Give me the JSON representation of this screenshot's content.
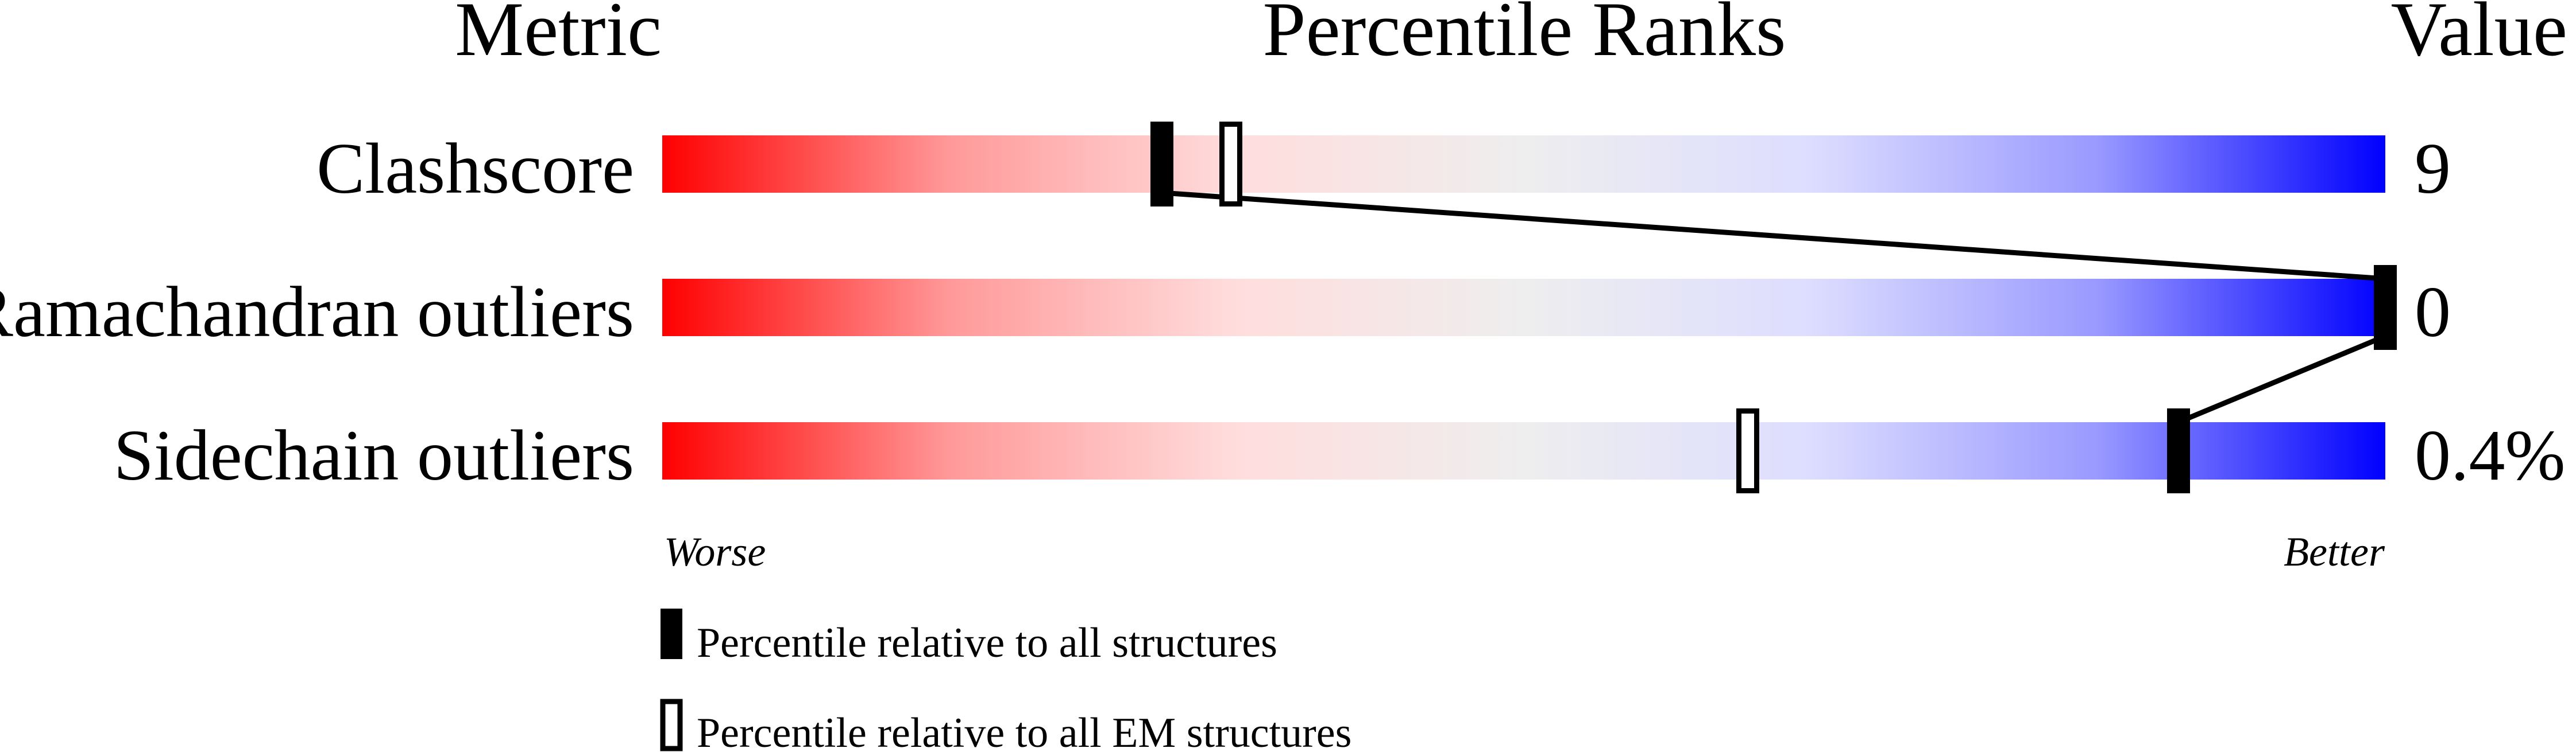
{
  "chart_data": {
    "type": "bar",
    "headers": {
      "metric": "Metric",
      "ranks": "Percentile Ranks",
      "value": "Value"
    },
    "xlim": [
      0,
      100
    ],
    "axis_labels": {
      "left": "Worse",
      "right": "Better"
    },
    "gradient": [
      "#ff0000",
      "#ff9999",
      "#ffdddd",
      "#eeeeee",
      "#ddddff",
      "#9999ff",
      "#0000ff"
    ],
    "rows": [
      {
        "metric": "Clashscore",
        "value": "9",
        "percentile_all": 29,
        "percentile_em": 33
      },
      {
        "metric": "Ramachandran outliers",
        "value": "0",
        "percentile_all": 100,
        "percentile_em": null
      },
      {
        "metric": "Sidechain outliers",
        "value": "0.4%",
        "percentile_all": 88,
        "percentile_em": 63
      }
    ],
    "legend": [
      {
        "marker": "filled",
        "label": "Percentile relative to all structures"
      },
      {
        "marker": "hollow",
        "label": "Percentile relative to all EM structures"
      }
    ]
  }
}
